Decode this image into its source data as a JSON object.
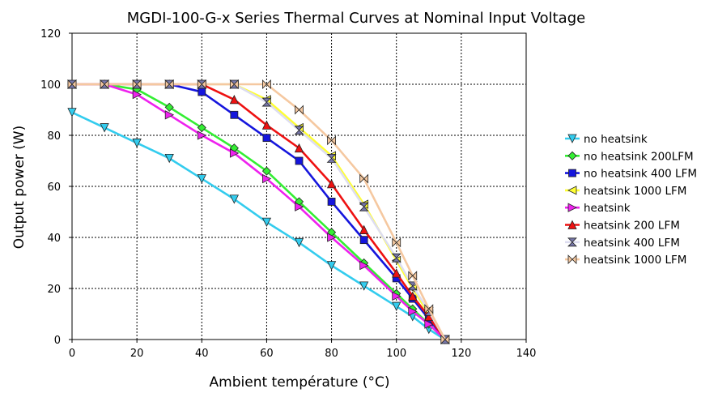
{
  "chart_data": {
    "type": "line",
    "title": "MGDI-100-G-x Series Thermal Curves at Nominal Input Voltage",
    "xlabel": "Ambient température (°C)",
    "ylabel": "Output power (W)",
    "xlim": [
      0,
      140
    ],
    "ylim": [
      0,
      120
    ],
    "xticks": [
      0,
      20,
      40,
      60,
      80,
      100,
      120,
      140
    ],
    "yticks": [
      0,
      20,
      40,
      60,
      80,
      100,
      120
    ],
    "grid": true,
    "legend_position": "right",
    "series": [
      {
        "name": "no heatsink",
        "color": "#33ccee",
        "marker": "triangle-down",
        "marker_color": "#33ccee",
        "x": [
          0,
          10,
          20,
          30,
          40,
          50,
          60,
          70,
          80,
          90,
          100,
          105,
          110,
          115
        ],
        "y": [
          89,
          83,
          77,
          71,
          63,
          55,
          46,
          38,
          29,
          21,
          13,
          9,
          4,
          0
        ]
      },
      {
        "name": "no heatsink 200LFM",
        "color": "#33ee33",
        "marker": "diamond",
        "marker_color": "#33ee33",
        "x": [
          0,
          10,
          20,
          30,
          40,
          50,
          60,
          70,
          80,
          90,
          100,
          105,
          110,
          115
        ],
        "y": [
          100,
          100,
          98,
          91,
          83,
          75,
          66,
          54,
          42,
          30,
          18,
          12,
          6,
          0
        ]
      },
      {
        "name": "no heatsink 400 LFM",
        "color": "#1515dd",
        "marker": "square",
        "marker_color": "#1515dd",
        "x": [
          0,
          10,
          20,
          30,
          40,
          50,
          60,
          70,
          80,
          90,
          100,
          105,
          110,
          115
        ],
        "y": [
          100,
          100,
          100,
          100,
          97,
          88,
          79,
          70,
          54,
          39,
          24,
          16,
          8,
          0
        ]
      },
      {
        "name": "heatsink 1000 LFM",
        "color": "#ffff33",
        "marker": "triangle-left",
        "marker_color": "#ffff33",
        "x": [
          0,
          10,
          20,
          30,
          40,
          50,
          60,
          70,
          80,
          90,
          100,
          105,
          110,
          115
        ],
        "y": [
          100,
          100,
          100,
          100,
          100,
          100,
          94,
          83,
          72,
          53,
          31,
          20,
          10,
          0
        ]
      },
      {
        "name": "heatsink",
        "color": "#ee22ee",
        "marker": "triangle-right",
        "marker_color": "#ee22ee",
        "x": [
          0,
          10,
          20,
          30,
          40,
          50,
          60,
          70,
          80,
          90,
          100,
          105,
          110,
          115
        ],
        "y": [
          100,
          100,
          96,
          88,
          80,
          73,
          63,
          52,
          40,
          29,
          17,
          11,
          6,
          0
        ]
      },
      {
        "name": "heatsink 200 LFM",
        "color": "#ee1111",
        "marker": "triangle-up",
        "marker_color": "#ee1111",
        "x": [
          0,
          10,
          20,
          30,
          40,
          50,
          60,
          70,
          80,
          90,
          100,
          105,
          110,
          115
        ],
        "y": [
          100,
          100,
          100,
          100,
          100,
          94,
          84,
          75,
          61,
          43,
          26,
          17,
          9,
          0
        ]
      },
      {
        "name": "heatsink 400 LFM",
        "color": "#ddddf0",
        "marker": "hourglass",
        "marker_color": "#7777aa",
        "x": [
          0,
          10,
          20,
          30,
          40,
          50,
          60,
          70,
          80,
          90,
          100,
          105,
          110,
          115
        ],
        "y": [
          100,
          100,
          100,
          100,
          100,
          100,
          93,
          82,
          71,
          52,
          32,
          21,
          11,
          0
        ]
      },
      {
        "name": "heatsink 1000 LFM",
        "color": "#f5c8a0",
        "marker": "bowtie",
        "marker_color": "#f5c8a0",
        "x": [
          0,
          10,
          20,
          30,
          40,
          50,
          60,
          70,
          80,
          90,
          100,
          105,
          110,
          115
        ],
        "y": [
          100,
          100,
          100,
          100,
          100,
          100,
          100,
          90,
          78,
          63,
          38,
          25,
          12,
          0
        ]
      }
    ]
  }
}
